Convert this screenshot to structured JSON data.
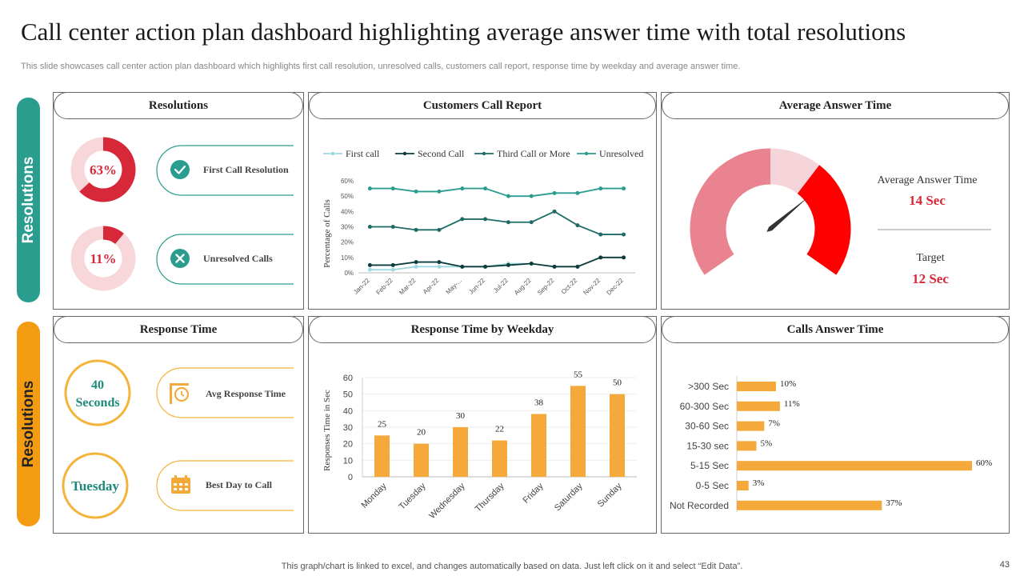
{
  "title": "Call center action plan dashboard highlighting average answer time with total resolutions",
  "subtitle": "This slide showcases call center action plan dashboard which highlights first call resolution, unresolved calls, customers call report, response time by weekday and average answer time.",
  "footer": "This graph/chart is linked to excel,  and changes automatically based on data. Just left click on it and select “Edit Data”.",
  "page_number": "43",
  "colors": {
    "teal": "#2a9d8f",
    "orange": "#f39c12",
    "red": "#d62839",
    "pink": "#f8d7da",
    "bar": "#f4a93a"
  },
  "side_tabs": {
    "top": "Resolutions",
    "bottom": "Resolutions"
  },
  "resolutions": {
    "header": "Resolutions",
    "first_call": {
      "percent": "63%",
      "value": 63,
      "label": "First Call Resolution"
    },
    "unresolved": {
      "percent": "11%",
      "value": 11,
      "label": "Unresolved Calls"
    }
  },
  "response_time": {
    "header": "Response Time",
    "avg": {
      "value_line1": "40",
      "value_line2": "Seconds",
      "label": "Avg Response Time"
    },
    "best_day": {
      "value": "Tuesday",
      "label": "Best Day to Call"
    }
  },
  "average_answer": {
    "header": "Average Answer Time",
    "avg_label": "Average Answer Time",
    "avg_value": "14 Sec",
    "target_label": "Target",
    "target_value": "12 Sec"
  },
  "chart_data": [
    {
      "id": "customers-call-report",
      "type": "line",
      "title": "Customers Call Report",
      "ylabel": "Percentage of Calls",
      "xlabel": "",
      "ylim": [
        0,
        60
      ],
      "yticks": [
        "0%",
        "10%",
        "20%",
        "30%",
        "40%",
        "50%",
        "60%"
      ],
      "categories": [
        "Jan-22",
        "Feb-22",
        "Mar-22",
        "Apr-22",
        "May-...",
        "Jun-22",
        "Jul-22",
        "Aug-22",
        "Sep-22",
        "Oct-22",
        "Nov-22",
        "Dec-22"
      ],
      "series": [
        {
          "name": "First call",
          "color": "#9fd8de",
          "values": [
            2,
            2,
            4,
            4,
            4,
            4,
            6,
            6,
            4,
            4,
            10,
            10
          ]
        },
        {
          "name": "Second Call",
          "color": "#0e3b3b",
          "values": [
            5,
            5,
            7,
            7,
            4,
            4,
            5,
            6,
            4,
            4,
            10,
            10
          ]
        },
        {
          "name": "Third Call or More",
          "color": "#1e6b66",
          "values": [
            30,
            30,
            28,
            28,
            35,
            35,
            33,
            33,
            40,
            31,
            25,
            25
          ]
        },
        {
          "name": "Unresolved",
          "color": "#2a9d8f",
          "values": [
            55,
            55,
            53,
            53,
            55,
            55,
            50,
            50,
            52,
            52,
            55,
            55
          ]
        }
      ]
    },
    {
      "id": "response-time-by-weekday",
      "type": "bar",
      "title": "Response Time by Weekday",
      "ylabel": "Responses Time in Sec",
      "xlabel": "",
      "ylim": [
        0,
        60
      ],
      "yticks": [
        "0",
        "10",
        "20",
        "30",
        "40",
        "50",
        "60"
      ],
      "categories": [
        "Monday",
        "Tuesday",
        "Wednesday",
        "Thursday",
        "Friday",
        "Saturday",
        "Sunday"
      ],
      "values": [
        25,
        20,
        30,
        22,
        38,
        55,
        50
      ],
      "labels": [
        "25",
        "20",
        "30",
        "22",
        "38",
        "55",
        "50"
      ]
    },
    {
      "id": "calls-answer-time",
      "type": "bar",
      "orientation": "horizontal",
      "title": "Calls Answer Time",
      "xlim": [
        0,
        60
      ],
      "categories": [
        ">300 Sec",
        "60-300 Sec",
        "30-60 Sec",
        "15-30 sec",
        "5-15 Sec",
        "0-5 Sec",
        "Not Recorded"
      ],
      "values": [
        10,
        11,
        7,
        5,
        60,
        3,
        37
      ],
      "labels": [
        "10%",
        "11%",
        "7%",
        "5%",
        "60%",
        "3%",
        "37%"
      ]
    },
    {
      "id": "average-answer-gauge",
      "type": "gauge",
      "title": "Average Answer Time",
      "min": 0,
      "max": 20,
      "value": 14,
      "target": 12,
      "segments": [
        {
          "value": 10,
          "color": "#e8838f"
        },
        {
          "value": 3,
          "color": "#f6d5da"
        },
        {
          "value": 7,
          "color": "#ff0000"
        }
      ]
    }
  ]
}
